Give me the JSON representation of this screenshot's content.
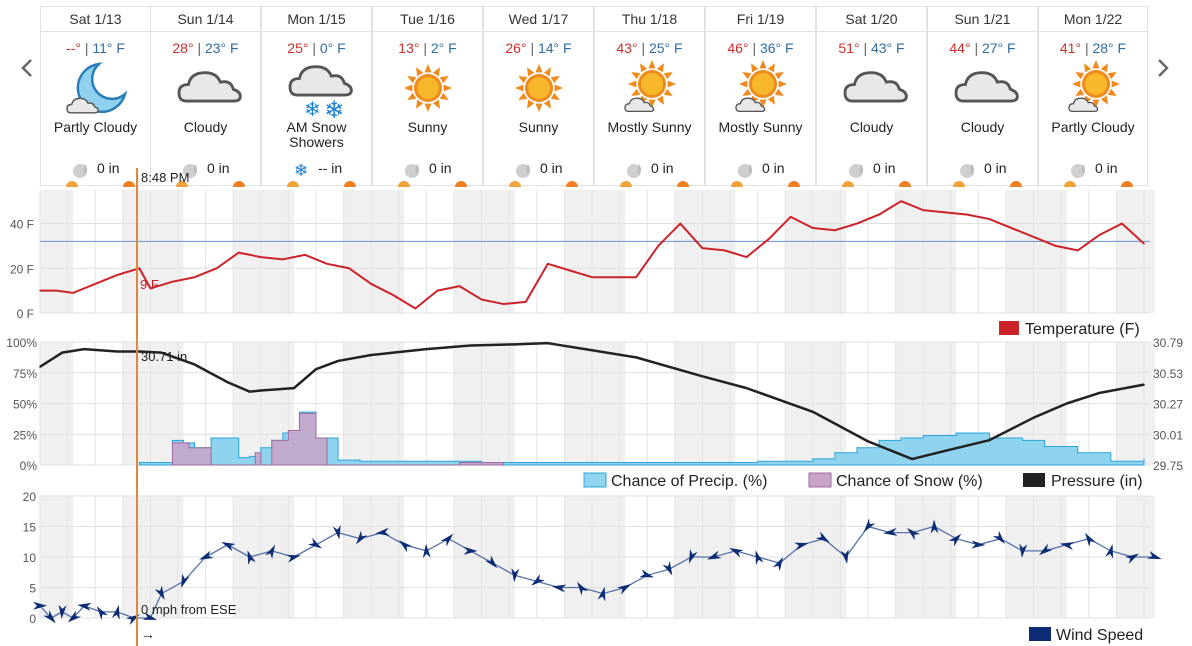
{
  "colors": {
    "temperature": "#cc2229",
    "precip_fill": "#8fd3ef",
    "precip_line": "#2ba6d8",
    "snow_fill": "#c9a2c7",
    "snow_line": "#9c6aa0",
    "pressure": "#222222",
    "wind": "#0c2c74",
    "cursor": "#e0883a",
    "freeze_line": "#6a8fc8",
    "night_band": "#f0f0f0"
  },
  "days": [
    {
      "date": "Sat 1/13",
      "hi": "--°",
      "lo": "11° F",
      "icon": "moon-partly-cloudy-icon",
      "cond": "Partly Cloudy",
      "precip": "0 in",
      "ptype": "rain"
    },
    {
      "date": "Sun 1/14",
      "hi": "28°",
      "lo": "23° F",
      "icon": "cloudy-icon",
      "cond": "Cloudy",
      "precip": "0 in",
      "ptype": "rain"
    },
    {
      "date": "Mon 1/15",
      "hi": "25°",
      "lo": "0° F",
      "icon": "snow-showers-icon",
      "cond": "AM Snow Showers",
      "precip": "-- in",
      "ptype": "snow"
    },
    {
      "date": "Tue 1/16",
      "hi": "13°",
      "lo": "2° F",
      "icon": "sunny-icon",
      "cond": "Sunny",
      "precip": "0 in",
      "ptype": "rain"
    },
    {
      "date": "Wed 1/17",
      "hi": "26°",
      "lo": "14° F",
      "icon": "sunny-icon",
      "cond": "Sunny",
      "precip": "0 in",
      "ptype": "rain"
    },
    {
      "date": "Thu 1/18",
      "hi": "43°",
      "lo": "25° F",
      "icon": "mostly-sunny-icon",
      "cond": "Mostly Sunny",
      "precip": "0 in",
      "ptype": "rain"
    },
    {
      "date": "Fri 1/19",
      "hi": "46°",
      "lo": "36° F",
      "icon": "mostly-sunny-icon",
      "cond": "Mostly Sunny",
      "precip": "0 in",
      "ptype": "rain"
    },
    {
      "date": "Sat 1/20",
      "hi": "51°",
      "lo": "43° F",
      "icon": "cloudy-icon",
      "cond": "Cloudy",
      "precip": "0 in",
      "ptype": "rain"
    },
    {
      "date": "Sun 1/21",
      "hi": "44°",
      "lo": "27° F",
      "icon": "cloudy-icon",
      "cond": "Cloudy",
      "precip": "0 in",
      "ptype": "rain"
    },
    {
      "date": "Mon 1/22",
      "hi": "41°",
      "lo": "28° F",
      "icon": "partly-cloudy-icon",
      "cond": "Partly Cloudy",
      "precip": "0 in",
      "ptype": "rain"
    }
  ],
  "cursor": {
    "time_label": "8:48 PM",
    "temp_label": "9 F",
    "pressure_label": "30.71 in",
    "wind_label": "0 mph from ESE",
    "wind_arrow": "→"
  },
  "chart_data": [
    {
      "type": "line",
      "title": "Temperature",
      "legend": "Temperature (F)",
      "legend_position": "bottom-right",
      "x_unit": "days since Sat 1/13 00:00",
      "xlim": [
        0,
        10.1
      ],
      "ylabel_ticks": [
        "0 F",
        "20 F",
        "40 F"
      ],
      "ylim": [
        0,
        55
      ],
      "freezing_line": 32,
      "x": [
        0,
        0.15,
        0.3,
        0.5,
        0.7,
        0.9,
        1.0,
        1.2,
        1.4,
        1.6,
        1.8,
        2.0,
        2.2,
        2.4,
        2.6,
        2.8,
        3.0,
        3.2,
        3.4,
        3.6,
        3.8,
        4.0,
        4.2,
        4.4,
        4.6,
        4.8,
        5.0,
        5.2,
        5.4,
        5.6,
        5.8,
        6.0,
        6.2,
        6.4,
        6.6,
        6.8,
        7.0,
        7.2,
        7.4,
        7.6,
        7.8,
        8.0,
        8.2,
        8.4,
        8.6,
        8.8,
        9.0,
        9.2,
        9.4,
        9.6,
        9.8,
        10.0
      ],
      "values": [
        10,
        10,
        9,
        13,
        17,
        20,
        11,
        14,
        16,
        20,
        27,
        25,
        24,
        26,
        22,
        20,
        13,
        8,
        2,
        10,
        12,
        6,
        4,
        5,
        22,
        19,
        16,
        16,
        16,
        30,
        40,
        29,
        28,
        25,
        33,
        43,
        38,
        37,
        40,
        44,
        50,
        46,
        45,
        44,
        42,
        38,
        34,
        30,
        28,
        35,
        40,
        31
      ]
    },
    {
      "type": "line",
      "title": "Pressure",
      "legend": "Pressure (in)",
      "legend_position": "bottom-right",
      "x_unit": "days since Sat 1/13 00:00",
      "xlim": [
        0,
        10.1
      ],
      "ylim": [
        29.75,
        30.79
      ],
      "right_axis_ticks": [
        "30.79",
        "30.53",
        "30.27",
        "30.01",
        "29.75"
      ],
      "x": [
        0,
        0.2,
        0.4,
        0.7,
        0.9,
        1.1,
        1.4,
        1.7,
        1.9,
        2.0,
        2.3,
        2.5,
        2.7,
        3.0,
        3.2,
        3.5,
        3.9,
        4.3,
        4.6,
        5.0,
        5.4,
        6.0,
        6.4,
        7.0,
        7.5,
        7.9,
        8.2,
        8.6,
        9.0,
        9.3,
        9.6,
        10.0
      ],
      "values": [
        30.58,
        30.7,
        30.73,
        30.71,
        30.71,
        30.7,
        30.6,
        30.45,
        30.37,
        30.38,
        30.4,
        30.56,
        30.63,
        30.68,
        30.7,
        30.73,
        30.76,
        30.77,
        30.78,
        30.72,
        30.66,
        30.5,
        30.4,
        30.2,
        29.95,
        29.8,
        29.87,
        29.96,
        30.15,
        30.27,
        30.36,
        30.43
      ]
    },
    {
      "type": "area",
      "title": "Chance of Precip. (%)",
      "legend": "Chance of Precip. (%)",
      "left_axis_ticks": [
        "100%",
        "75%",
        "50%",
        "25%",
        "0%"
      ],
      "ylim": [
        0,
        100
      ],
      "x_unit": "days since Sat 1/13 00:00",
      "x": [
        0.9,
        1.2,
        1.3,
        1.4,
        1.55,
        1.7,
        1.8,
        1.9,
        2.0,
        2.1,
        2.2,
        2.35,
        2.5,
        2.7,
        2.9,
        3.1,
        3.5,
        4.0,
        4.5,
        5.0,
        5.5,
        6.0,
        6.5,
        7.0,
        7.2,
        7.4,
        7.6,
        7.8,
        8.0,
        8.3,
        8.6,
        8.9,
        9.1,
        9.4,
        9.7,
        10.0
      ],
      "values": [
        2,
        20,
        18,
        14,
        22,
        22,
        6,
        7,
        14,
        20,
        26,
        43,
        22,
        4,
        3,
        3,
        3,
        2,
        2,
        2,
        2,
        2,
        3,
        5,
        10,
        14,
        20,
        22,
        24,
        26,
        22,
        20,
        15,
        10,
        3,
        5
      ]
    },
    {
      "type": "area",
      "title": "Chance of Snow (%)",
      "legend": "Chance of Snow (%)",
      "ylim": [
        0,
        100
      ],
      "x_unit": "days since Sat 1/13 00:00",
      "x": [
        1.2,
        1.35,
        1.5,
        1.55,
        1.8,
        1.95,
        2.0,
        2.1,
        2.25,
        2.35,
        2.5,
        2.6,
        3.6,
        3.8,
        4.0,
        4.2
      ],
      "values": [
        18,
        14,
        14,
        0,
        0,
        10,
        0,
        20,
        28,
        42,
        22,
        0,
        0,
        2,
        2,
        0
      ]
    },
    {
      "type": "line",
      "title": "Wind Speed",
      "legend": "Wind Speed",
      "legend_position": "bottom-right",
      "x_unit": "days since Sat 1/13 00:00",
      "xlim": [
        0,
        10.1
      ],
      "left_axis_ticks": [
        "20",
        "15",
        "10",
        "5",
        "0"
      ],
      "ylim": [
        0,
        20
      ],
      "x": [
        0,
        0.1,
        0.2,
        0.3,
        0.4,
        0.55,
        0.7,
        0.85,
        1.0,
        1.1,
        1.3,
        1.5,
        1.7,
        1.9,
        2.1,
        2.3,
        2.5,
        2.7,
        2.9,
        3.1,
        3.3,
        3.5,
        3.7,
        3.9,
        4.1,
        4.3,
        4.5,
        4.7,
        4.9,
        5.1,
        5.3,
        5.5,
        5.7,
        5.9,
        6.1,
        6.3,
        6.5,
        6.7,
        6.9,
        7.1,
        7.3,
        7.5,
        7.7,
        7.9,
        8.1,
        8.3,
        8.5,
        8.7,
        8.9,
        9.1,
        9.3,
        9.5,
        9.7,
        9.9,
        10.1
      ],
      "values": [
        2,
        0,
        1,
        0,
        2,
        1,
        1,
        0,
        0,
        4,
        6,
        10,
        12,
        10,
        11,
        10,
        12,
        14,
        13,
        14,
        12,
        11,
        13,
        11,
        9,
        7,
        6,
        5,
        5,
        4,
        5,
        7,
        8,
        10,
        10,
        11,
        10,
        9,
        12,
        13,
        10,
        15,
        14,
        14,
        15,
        13,
        12,
        13,
        11,
        11,
        12,
        13,
        11,
        10,
        10
      ]
    }
  ]
}
